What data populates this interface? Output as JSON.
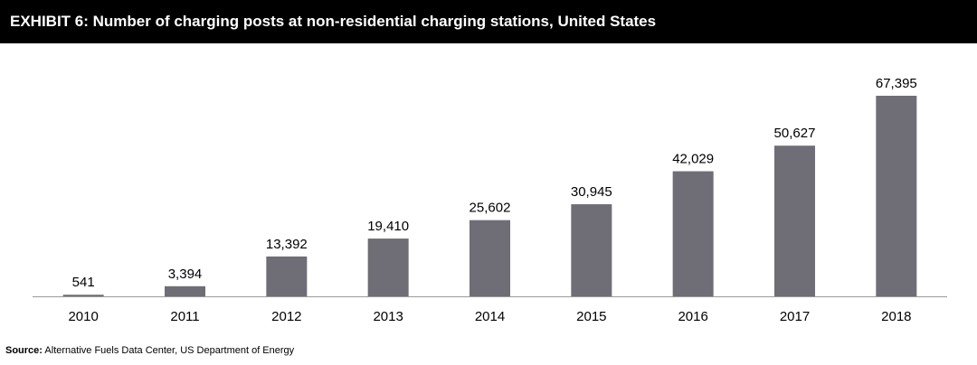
{
  "title": "EXHIBIT 6: Number of charging posts at non-residential charging stations, United States",
  "source_label": "Source:",
  "source_text": "Alternative Fuels Data Center, US Department of Energy",
  "chart_data": {
    "type": "bar",
    "categories": [
      "2010",
      "2011",
      "2012",
      "2013",
      "2014",
      "2015",
      "2016",
      "2017",
      "2018"
    ],
    "values": [
      541,
      3394,
      13392,
      19410,
      25602,
      30945,
      42029,
      50627,
      67395
    ],
    "data_labels": [
      "541",
      "3,394",
      "13,392",
      "19,410",
      "25,602",
      "30,945",
      "42,029",
      "50,627",
      "67,395"
    ],
    "ylim": [
      0,
      67395
    ],
    "bar_color": "#6f6d75",
    "grid": false,
    "legend": "none"
  }
}
